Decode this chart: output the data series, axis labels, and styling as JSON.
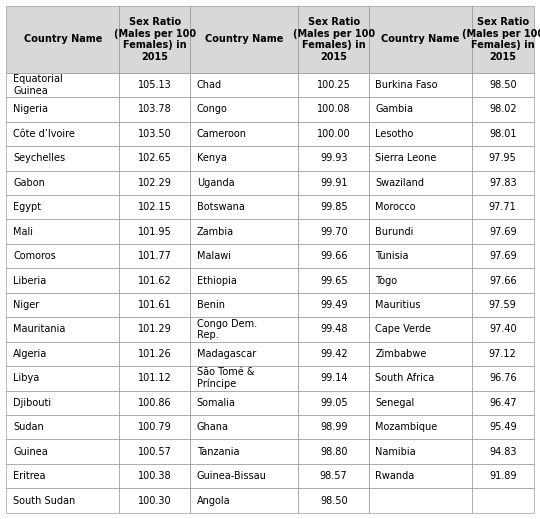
{
  "col1_countries": [
    "Equatorial\nGuinea",
    "Nigeria",
    "Côte d’Ivoire",
    "Seychelles",
    "Gabon",
    "Egypt",
    "Mali",
    "Comoros",
    "Liberia",
    "Niger",
    "Mauritania",
    "Algeria",
    "Libya",
    "Djibouti",
    "Sudan",
    "Guinea",
    "Eritrea",
    "South Sudan"
  ],
  "col1_values": [
    "105.13",
    "103.78",
    "103.50",
    "102.65",
    "102.29",
    "102.15",
    "101.95",
    "101.77",
    "101.62",
    "101.61",
    "101.29",
    "101.26",
    "101.12",
    "100.86",
    "100.79",
    "100.57",
    "100.38",
    "100.30"
  ],
  "col2_countries": [
    "Chad",
    "Congo",
    "Cameroon",
    "Kenya",
    "Uganda",
    "Botswana",
    "Zambia",
    "Malawi",
    "Ethiopia",
    "Benin",
    "Congo Dem.\nRep.",
    "Madagascar",
    "São Tomé &\nPríncipe",
    "Somalia",
    "Ghana",
    "Tanzania",
    "Guinea-Bissau",
    "Angola"
  ],
  "col2_values": [
    "100.25",
    "100.08",
    "100.00",
    "99.93",
    "99.91",
    "99.85",
    "99.70",
    "99.66",
    "99.65",
    "99.49",
    "99.48",
    "99.42",
    "99.14",
    "99.05",
    "98.99",
    "98.80",
    "98.57",
    "98.50"
  ],
  "col3_countries": [
    "Burkina Faso",
    "Gambia",
    "Lesotho",
    "Sierra Leone",
    "Swaziland",
    "Morocco",
    "Burundi",
    "Tunisia",
    "Togo",
    "Mauritius",
    "Cape Verde",
    "Zimbabwe",
    "South Africa",
    "Senegal",
    "Mozambique",
    "Namibia",
    "Rwanda",
    ""
  ],
  "col3_values": [
    "98.50",
    "98.02",
    "98.01",
    "97.95",
    "97.83",
    "97.71",
    "97.69",
    "97.69",
    "97.66",
    "97.59",
    "97.40",
    "97.12",
    "96.76",
    "96.47",
    "95.49",
    "94.83",
    "91.89",
    ""
  ],
  "header_country": "Country Name",
  "header_ratio": "Sex Ratio\n(Males per 100\nFemales) in\n2015",
  "bg_header": "#d8d8d8",
  "bg_white": "#ffffff",
  "border_color": "#888888",
  "text_color": "#000000",
  "figwidth": 5.4,
  "figheight": 5.19,
  "dpi": 100
}
